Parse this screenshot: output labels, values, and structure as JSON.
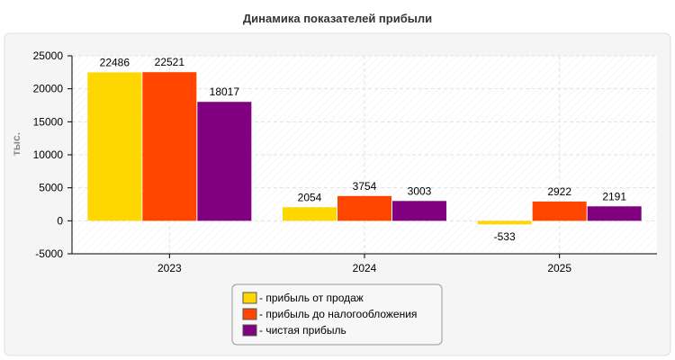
{
  "chart_data": {
    "type": "bar",
    "title": "Динамика показателей прибыли",
    "ylabel": "тыс.",
    "xlabel": "",
    "categories": [
      "2023",
      "2024",
      "2025"
    ],
    "ylim": [
      -5000,
      25000
    ],
    "yticks": [
      -5000,
      0,
      5000,
      10000,
      15000,
      20000,
      25000
    ],
    "grid": true,
    "legend_position": "bottom-center",
    "series": [
      {
        "name": "прибыль от продаж",
        "color": "#FFD700",
        "values": [
          22486,
          2054,
          -533
        ]
      },
      {
        "name": "прибыль до налогообложения",
        "color": "#FF4500",
        "values": [
          22521,
          3754,
          2922
        ]
      },
      {
        "name": "чистая прибыль",
        "color": "#800080",
        "values": [
          18017,
          3003,
          2191
        ]
      }
    ]
  }
}
